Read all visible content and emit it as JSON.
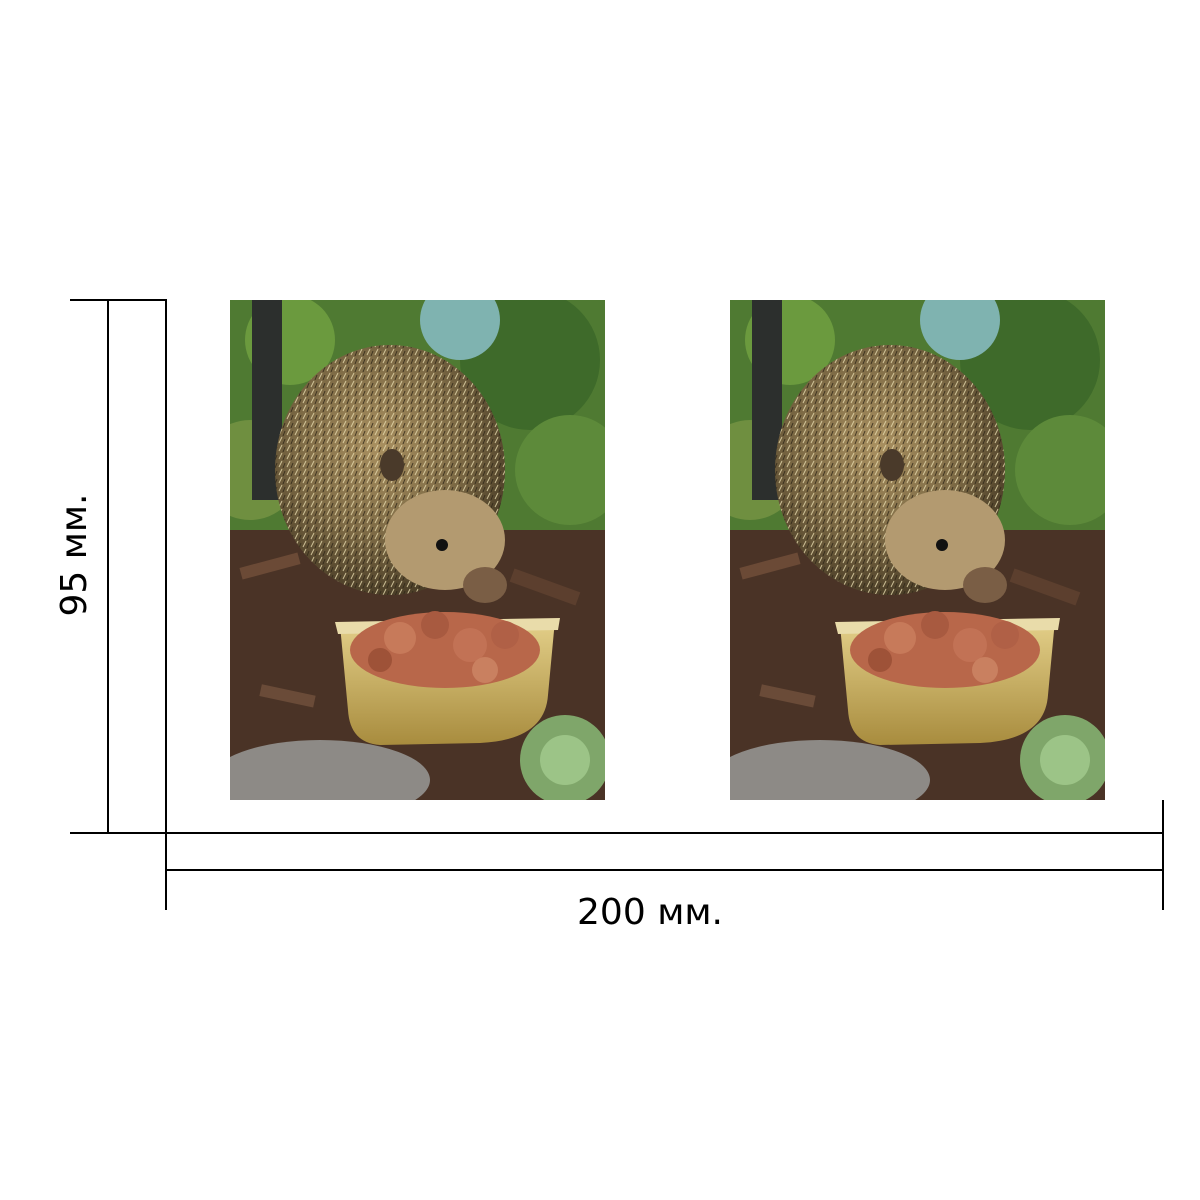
{
  "dimensions": {
    "height_label": "95 мм.",
    "width_label": "200 мм."
  },
  "photos": [
    {
      "subject": "hedgehog-eating-from-food-tray"
    },
    {
      "subject": "hedgehog-eating-from-food-tray"
    }
  ],
  "colors": {
    "background": "#ffffff",
    "dimension_line": "#000000",
    "foliage": "#4f7a32",
    "soil": "#4a3326",
    "hedgehog_spines": "#8a7348",
    "tray": "#c9b063",
    "food": "#b8674a"
  }
}
